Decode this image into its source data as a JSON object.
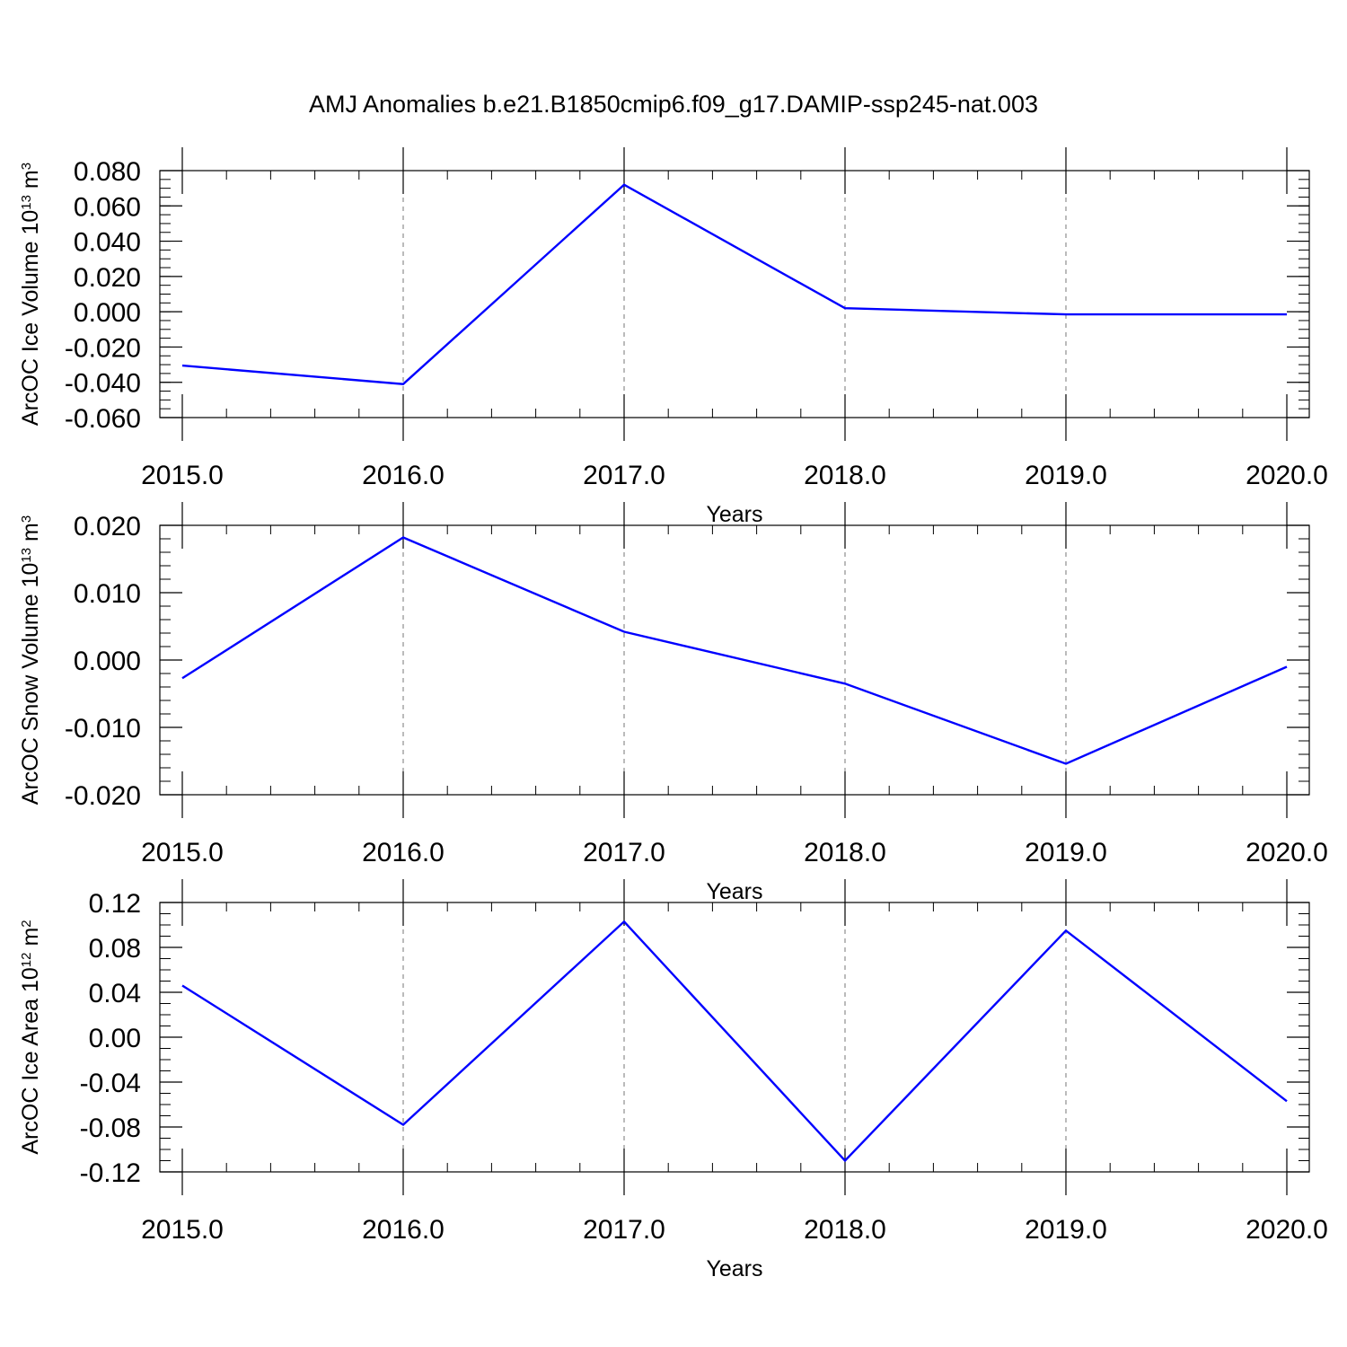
{
  "figure": {
    "title": "AMJ Anomalies b.e21.B1850cmip6.f09_g17.DAMIP-ssp245-nat.003",
    "line_color": "#0000ff"
  },
  "chart_data": [
    {
      "type": "line",
      "title": "",
      "xlabel": "Years",
      "ylabel": {
        "main": "ArcOC Ice Volume 10",
        "exp": "13",
        "gap": " m",
        "unit_exp": "3"
      },
      "x": [
        2015,
        2016,
        2017,
        2018,
        2019,
        2020
      ],
      "x_tick_labels": [
        "2015.0",
        "2016.0",
        "2017.0",
        "2018.0",
        "2019.0",
        "2020.0"
      ],
      "xlim": [
        2015,
        2020.1
      ],
      "ylim": [
        -0.06,
        0.08
      ],
      "y_ticks": [
        -0.06,
        -0.04,
        -0.02,
        0.0,
        0.02,
        0.04,
        0.06,
        0.08
      ],
      "y_tick_labels": [
        "-0.060",
        "-0.040",
        "-0.020",
        "0.000",
        "0.020",
        "0.040",
        "0.060",
        "0.080"
      ],
      "y_minor": 0.005,
      "series": [
        {
          "values": [
            -0.0305,
            -0.041,
            0.072,
            0.002,
            -0.0015,
            -0.0015
          ]
        }
      ],
      "grid": "x-dashed"
    },
    {
      "type": "line",
      "title": "",
      "xlabel": "Years",
      "ylabel": {
        "main": "ArcOC Snow Volume 10",
        "exp": "13",
        "gap": " m",
        "unit_exp": "3"
      },
      "x": [
        2015,
        2016,
        2017,
        2018,
        2019,
        2020
      ],
      "x_tick_labels": [
        "2015.0",
        "2016.0",
        "2017.0",
        "2018.0",
        "2019.0",
        "2020.0"
      ],
      "xlim": [
        2015,
        2020.1
      ],
      "ylim": [
        -0.02,
        0.02
      ],
      "y_ticks": [
        -0.02,
        -0.01,
        0.0,
        0.01,
        0.02
      ],
      "y_tick_labels": [
        "-0.020",
        "-0.010",
        "0.000",
        "0.010",
        "0.020"
      ],
      "y_minor": 0.002,
      "series": [
        {
          "values": [
            -0.0027,
            0.0182,
            0.0042,
            -0.0035,
            -0.0154,
            -0.001
          ]
        }
      ],
      "grid": "x-dashed"
    },
    {
      "type": "line",
      "title": "",
      "xlabel": "Years",
      "ylabel": {
        "main": "ArcOC Ice Area 10",
        "exp": "12",
        "gap": " m",
        "unit_exp": "2"
      },
      "x": [
        2015,
        2016,
        2017,
        2018,
        2019,
        2020
      ],
      "x_tick_labels": [
        "2015.0",
        "2016.0",
        "2017.0",
        "2018.0",
        "2019.0",
        "2020.0"
      ],
      "xlim": [
        2015,
        2020.1
      ],
      "ylim": [
        -0.12,
        0.12
      ],
      "y_ticks": [
        -0.12,
        -0.08,
        -0.04,
        0.0,
        0.04,
        0.08,
        0.12
      ],
      "y_tick_labels": [
        "-0.12",
        "-0.08",
        "-0.04",
        "0.00",
        "0.04",
        "0.08",
        "0.12"
      ],
      "y_minor": 0.01,
      "series": [
        {
          "values": [
            0.046,
            -0.078,
            0.103,
            -0.11,
            0.095,
            -0.057
          ]
        }
      ],
      "grid": "x-dashed"
    }
  ]
}
